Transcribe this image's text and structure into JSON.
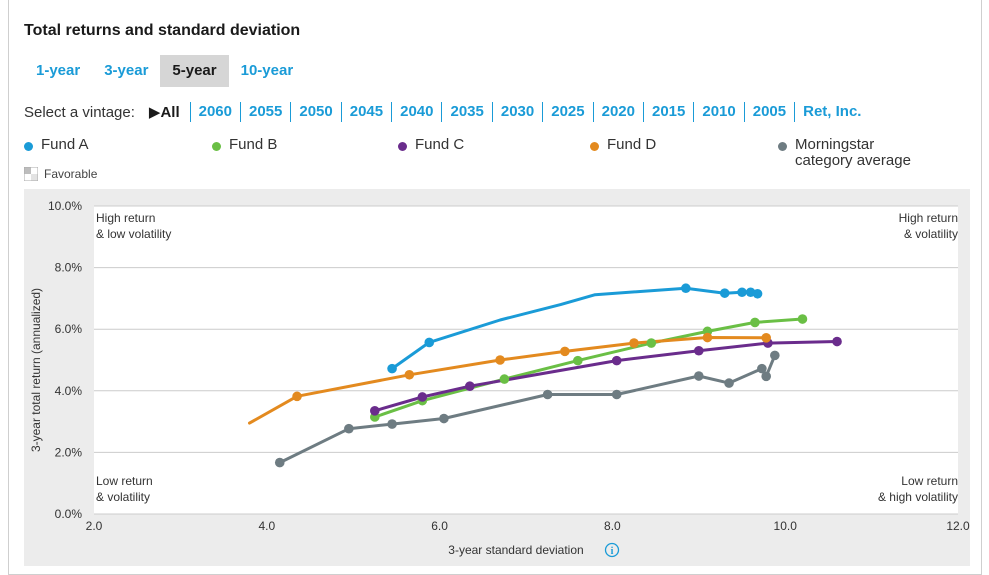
{
  "title": "Total returns and standard deviation",
  "tabs": [
    "1-year",
    "3-year",
    "5-year",
    "10-year"
  ],
  "active_tab": "5-year",
  "vintage": {
    "label": "Select a vintage:",
    "all_label": "▶All",
    "items": [
      "2060",
      "2055",
      "2050",
      "2045",
      "2040",
      "2035",
      "2030",
      "2025",
      "2020",
      "2015",
      "2010",
      "2005",
      "Ret, Inc."
    ]
  },
  "legend": [
    {
      "name": "Fund A",
      "color": "#1a9bd7"
    },
    {
      "name": "Fund B",
      "color": "#6abf45"
    },
    {
      "name": "Fund C",
      "color": "#6a2c8c"
    },
    {
      "name": "Fund D",
      "color": "#e38a1f"
    },
    {
      "name": "Morningstar category average",
      "line1": "Morningstar",
      "line2": "category average",
      "color": "#6e7c82"
    }
  ],
  "favorable_label": "Favorable",
  "colors": {
    "accent": "#1a9bd7",
    "plot_bg": "#ffffff",
    "outer_bg": "#ececec",
    "grid": "#cccccc"
  },
  "chart_data": {
    "type": "line",
    "xlabel": "3-year standard deviation",
    "ylabel": "3-year total return (annualized)",
    "xlim": [
      2.0,
      12.0
    ],
    "ylim": [
      0,
      10
    ],
    "xticks": [
      "2.0",
      "4.0",
      "6.0",
      "8.0",
      "10.0",
      "12.0"
    ],
    "yticks": [
      "0.0%",
      "2.0%",
      "4.0%",
      "6.0%",
      "8.0%",
      "10.0%"
    ],
    "grid": true,
    "quadrants": {
      "top_left": [
        "High return",
        "& low volatility"
      ],
      "top_right": [
        "High return",
        "& volatility"
      ],
      "bottom_left": [
        "Low return",
        "& volatility"
      ],
      "bottom_right": [
        "Low return",
        "& high volatility"
      ]
    },
    "series": [
      {
        "name": "Fund A",
        "color": "#1a9bd7",
        "line": [
          [
            5.45,
            4.72
          ],
          [
            5.88,
            5.57
          ],
          [
            6.7,
            6.3
          ],
          [
            7.4,
            6.8
          ],
          [
            7.8,
            7.12
          ],
          [
            8.85,
            7.33
          ],
          [
            9.3,
            7.17
          ],
          [
            9.5,
            7.2
          ],
          [
            9.6,
            7.2
          ],
          [
            9.68,
            7.15
          ]
        ],
        "points": [
          [
            5.45,
            4.72
          ],
          [
            5.88,
            5.57
          ],
          [
            8.85,
            7.33
          ],
          [
            9.3,
            7.17
          ],
          [
            9.5,
            7.2
          ],
          [
            9.6,
            7.2
          ],
          [
            9.68,
            7.15
          ]
        ]
      },
      {
        "name": "Fund B",
        "color": "#6abf45",
        "line": [
          [
            5.25,
            3.15
          ],
          [
            5.8,
            3.68
          ],
          [
            6.75,
            4.38
          ],
          [
            7.6,
            4.98
          ],
          [
            8.45,
            5.55
          ],
          [
            9.1,
            5.93
          ],
          [
            9.65,
            6.22
          ],
          [
            10.2,
            6.33
          ]
        ],
        "points": [
          [
            5.25,
            3.15
          ],
          [
            5.8,
            3.68
          ],
          [
            6.75,
            4.38
          ],
          [
            7.6,
            4.98
          ],
          [
            8.45,
            5.55
          ],
          [
            9.1,
            5.93
          ],
          [
            9.65,
            6.22
          ],
          [
            10.2,
            6.33
          ]
        ]
      },
      {
        "name": "Fund C",
        "color": "#6a2c8c",
        "line": [
          [
            5.25,
            3.35
          ],
          [
            5.8,
            3.8
          ],
          [
            6.35,
            4.15
          ],
          [
            8.05,
            4.98
          ],
          [
            9.0,
            5.3
          ],
          [
            9.8,
            5.55
          ],
          [
            10.6,
            5.6
          ]
        ],
        "points": [
          [
            5.25,
            3.35
          ],
          [
            5.8,
            3.8
          ],
          [
            6.35,
            4.15
          ],
          [
            8.05,
            4.98
          ],
          [
            9.0,
            5.3
          ],
          [
            9.8,
            5.55
          ],
          [
            10.6,
            5.6
          ]
        ]
      },
      {
        "name": "Fund D",
        "color": "#e38a1f",
        "line": [
          [
            3.8,
            2.95
          ],
          [
            4.35,
            3.82
          ],
          [
            5.65,
            4.52
          ],
          [
            6.7,
            5.0
          ],
          [
            7.45,
            5.28
          ],
          [
            8.25,
            5.55
          ],
          [
            9.1,
            5.73
          ],
          [
            9.78,
            5.72
          ]
        ],
        "points": [
          [
            4.35,
            3.82
          ],
          [
            5.65,
            4.52
          ],
          [
            6.7,
            5.0
          ],
          [
            7.45,
            5.28
          ],
          [
            8.25,
            5.55
          ],
          [
            9.1,
            5.73
          ],
          [
            9.78,
            5.72
          ]
        ]
      },
      {
        "name": "Morningstar category average",
        "color": "#6e7c82",
        "line": [
          [
            4.15,
            1.67
          ],
          [
            4.95,
            2.77
          ],
          [
            5.45,
            2.92
          ],
          [
            6.05,
            3.1
          ],
          [
            7.25,
            3.88
          ],
          [
            8.05,
            3.88
          ],
          [
            9.0,
            4.48
          ],
          [
            9.35,
            4.25
          ],
          [
            9.73,
            4.72
          ],
          [
            9.78,
            4.47
          ],
          [
            9.88,
            5.15
          ]
        ],
        "points": [
          [
            4.15,
            1.67
          ],
          [
            4.95,
            2.77
          ],
          [
            5.45,
            2.92
          ],
          [
            6.05,
            3.1
          ],
          [
            7.25,
            3.88
          ],
          [
            8.05,
            3.88
          ],
          [
            9.0,
            4.48
          ],
          [
            9.35,
            4.25
          ],
          [
            9.73,
            4.72
          ],
          [
            9.78,
            4.47
          ],
          [
            9.88,
            5.15
          ]
        ]
      }
    ]
  }
}
